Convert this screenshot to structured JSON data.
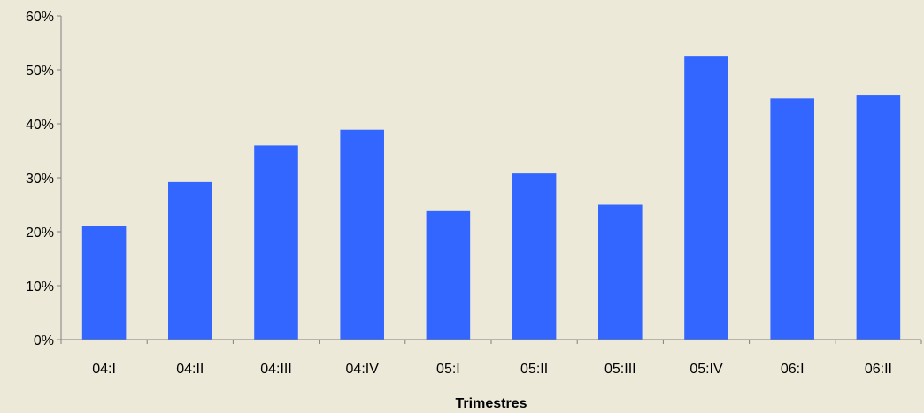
{
  "chart_data": {
    "type": "bar",
    "title": "",
    "xlabel": "Trimestres",
    "ylabel": "",
    "categories": [
      "04:I",
      "04:II",
      "04:III",
      "04:IV",
      "05:I",
      "05:II",
      "05:III",
      "05:IV",
      "06:I",
      "06:II"
    ],
    "values": [
      21.1,
      29.2,
      36.0,
      38.9,
      23.8,
      30.8,
      25.0,
      52.6,
      44.7,
      45.4
    ],
    "ylim": [
      0,
      60
    ],
    "ytick_values": [
      0,
      10,
      20,
      30,
      40,
      50,
      60
    ],
    "ytick_labels": [
      "0%",
      "10%",
      "20%",
      "30%",
      "40%",
      "50%",
      "60%"
    ],
    "grid": false,
    "legend": "none",
    "colors": {
      "bar": "#3366FF",
      "background": "#ECE9D8",
      "axis": "#808080",
      "text": "#000000"
    }
  }
}
